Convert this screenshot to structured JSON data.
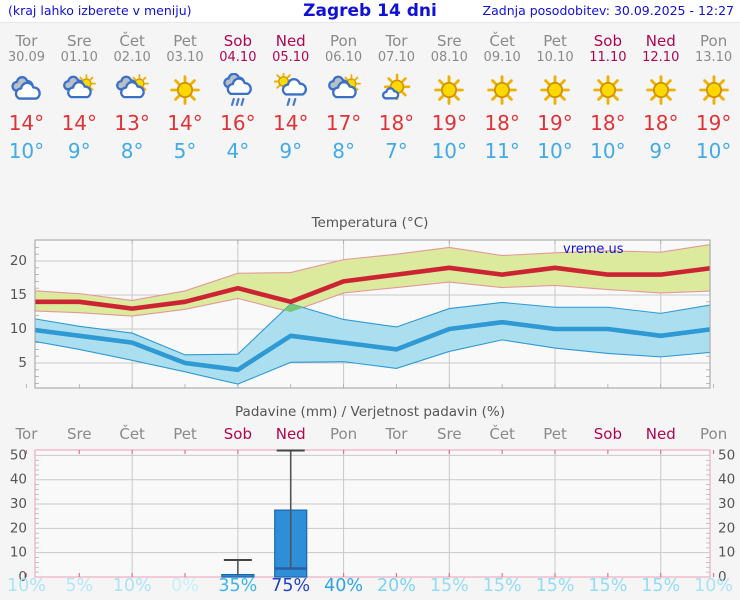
{
  "header": {
    "menu_hint": "(kraj lahko izberete v meniju)",
    "title": "Zagreb 14 dni",
    "last_update": "Zadnja posodobitev: 30.09.2025 - 12:27"
  },
  "watermark": "vreme.us",
  "colors": {
    "weekend": "#b10552",
    "weekday": "#8a8a8a",
    "high_temp": "#e03336",
    "low_temp": "#42aae8",
    "header_blue": "#1111d6"
  },
  "forecast": {
    "days": [
      {
        "name": "Tor",
        "date": "30.09",
        "weekend": false,
        "icon": "cloudy",
        "high": "14°",
        "low": "10°",
        "precip_prob": "10%",
        "prob_color": "#a9e4f6"
      },
      {
        "name": "Sre",
        "date": "01.10",
        "weekend": false,
        "icon": "partly",
        "high": "14°",
        "low": "9°",
        "precip_prob": "5%",
        "prob_color": "#b3e8f7"
      },
      {
        "name": "Čet",
        "date": "02.10",
        "weekend": false,
        "icon": "partly",
        "high": "13°",
        "low": "8°",
        "precip_prob": "10%",
        "prob_color": "#a9e4f6"
      },
      {
        "name": "Pet",
        "date": "03.10",
        "weekend": false,
        "icon": "sunny",
        "high": "14°",
        "low": "5°",
        "precip_prob": "0%",
        "prob_color": "#c6f0fa"
      },
      {
        "name": "Sob",
        "date": "04.10",
        "weekend": true,
        "icon": "rain",
        "high": "16°",
        "low": "4°",
        "precip_prob": "35%",
        "prob_color": "#3eb5e9"
      },
      {
        "name": "Ned",
        "date": "05.10",
        "weekend": true,
        "icon": "sun-shower",
        "high": "14°",
        "low": "9°",
        "precip_prob": "75%",
        "prob_color": "#2342c4"
      },
      {
        "name": "Pon",
        "date": "06.10",
        "weekend": false,
        "icon": "partly",
        "high": "17°",
        "low": "8°",
        "precip_prob": "40%",
        "prob_color": "#2aa4e6"
      },
      {
        "name": "Tor",
        "date": "07.10",
        "weekend": false,
        "icon": "mostly-sunny",
        "high": "18°",
        "low": "7°",
        "precip_prob": "20%",
        "prob_color": "#7cd2f1"
      },
      {
        "name": "Sre",
        "date": "08.10",
        "weekend": false,
        "icon": "sunny",
        "high": "19°",
        "low": "10°",
        "precip_prob": "15%",
        "prob_color": "#93dcf3"
      },
      {
        "name": "Čet",
        "date": "09.10",
        "weekend": false,
        "icon": "sunny",
        "high": "18°",
        "low": "11°",
        "precip_prob": "15%",
        "prob_color": "#93dcf3"
      },
      {
        "name": "Pet",
        "date": "10.10",
        "weekend": false,
        "icon": "sunny",
        "high": "19°",
        "low": "10°",
        "precip_prob": "15%",
        "prob_color": "#93dcf3"
      },
      {
        "name": "Sob",
        "date": "11.10",
        "weekend": true,
        "icon": "sunny",
        "high": "18°",
        "low": "10°",
        "precip_prob": "15%",
        "prob_color": "#93dcf3"
      },
      {
        "name": "Ned",
        "date": "12.10",
        "weekend": true,
        "icon": "sunny",
        "high": "18°",
        "low": "9°",
        "precip_prob": "15%",
        "prob_color": "#93dcf3"
      },
      {
        "name": "Pon",
        "date": "13.10",
        "weekend": false,
        "icon": "sunny",
        "high": "19°",
        "low": "10°",
        "precip_prob": "10%",
        "prob_color": "#a9e4f6"
      }
    ]
  },
  "chart_data": [
    {
      "type": "area",
      "title": "Temperatura (°C)",
      "categories": [
        "Tor",
        "Sre",
        "Čet",
        "Pet",
        "Sob",
        "Ned",
        "Pon",
        "Tor",
        "Sre",
        "Čet",
        "Pet",
        "Sob",
        "Ned",
        "Pon"
      ],
      "ylabel": "°C",
      "ylim": [
        1.3,
        23.1
      ],
      "yticks": [
        5,
        10,
        15,
        20
      ],
      "grid": true,
      "gridline_day_indices": [
        2,
        4,
        6,
        8,
        10,
        12
      ],
      "series": [
        {
          "name": "max temperature",
          "color": "#cc2433",
          "band_color": "#dcea9e",
          "band_edge": "#e59898",
          "values": [
            14,
            14,
            13,
            14,
            16,
            14,
            17,
            18,
            19,
            18,
            19,
            18,
            18,
            19
          ],
          "upper": [
            15.7,
            15.2,
            14.2,
            15.6,
            18.2,
            18.3,
            20.2,
            21.0,
            22.0,
            20.8,
            21.2,
            21.5,
            21.3,
            22.5
          ],
          "lower": [
            12.7,
            12.4,
            11.9,
            12.9,
            14.5,
            12.5,
            15.3,
            16.1,
            16.9,
            16.1,
            16.4,
            15.8,
            15.3,
            15.6
          ]
        },
        {
          "name": "min temperature",
          "color": "#2f99d4",
          "band_color": "#abdff0",
          "band_edge": "#2f99d4",
          "values": [
            10,
            9,
            8,
            5,
            4,
            9,
            8,
            7,
            10,
            11,
            10,
            10,
            9,
            10
          ],
          "upper": [
            11.7,
            10.4,
            9.4,
            6.2,
            6.3,
            13.7,
            11.4,
            10.3,
            13.0,
            13.9,
            13.2,
            13.2,
            12.3,
            13.6
          ],
          "lower": [
            8.4,
            7.0,
            5.4,
            3.7,
            1.9,
            5.1,
            5.2,
            4.2,
            6.7,
            8.4,
            7.2,
            6.4,
            5.9,
            6.6
          ]
        }
      ],
      "overlap_color": "#79c673",
      "grid_color": "#c9c9c9",
      "axis_color": "#a0a0a0",
      "tick_label_color": "#555555"
    },
    {
      "type": "bar",
      "title": "Padavine (mm) / Verjetnost padavin (%)",
      "categories": [
        "Tor",
        "Sre",
        "Čet",
        "Pet",
        "Sob",
        "Ned",
        "Pon",
        "Tor",
        "Sre",
        "Čet",
        "Pet",
        "Sob",
        "Ned",
        "Pon"
      ],
      "ylabel": "mm",
      "ylim": [
        0,
        52.3
      ],
      "yticks": [
        0,
        10,
        20,
        30,
        40,
        50
      ],
      "grid": true,
      "gridline_day_indices": [
        2,
        4,
        6,
        8,
        10,
        12
      ],
      "bars": [
        {
          "day_index": 4,
          "amount_mm": 1,
          "whisker_max_mm": 7,
          "inner_mm": null
        },
        {
          "day_index": 5,
          "amount_mm": 27.5,
          "whisker_max_mm": 52,
          "inner_mm": 3.5
        }
      ],
      "probabilities": [
        "10%",
        "5%",
        "10%",
        "0%",
        "35%",
        "75%",
        "40%",
        "20%",
        "15%",
        "15%",
        "15%",
        "15%",
        "15%",
        "10%"
      ],
      "bar_color": "#2e8fd8",
      "bar_border": "#1a67b0",
      "whisker_color": "#555555",
      "inner_line_color": "#28609f",
      "border_color": "#f0aec0",
      "day_tick_color": "#e0728e",
      "grid_color": "#c9c9c9",
      "tick_label_color": "#555555"
    }
  ]
}
